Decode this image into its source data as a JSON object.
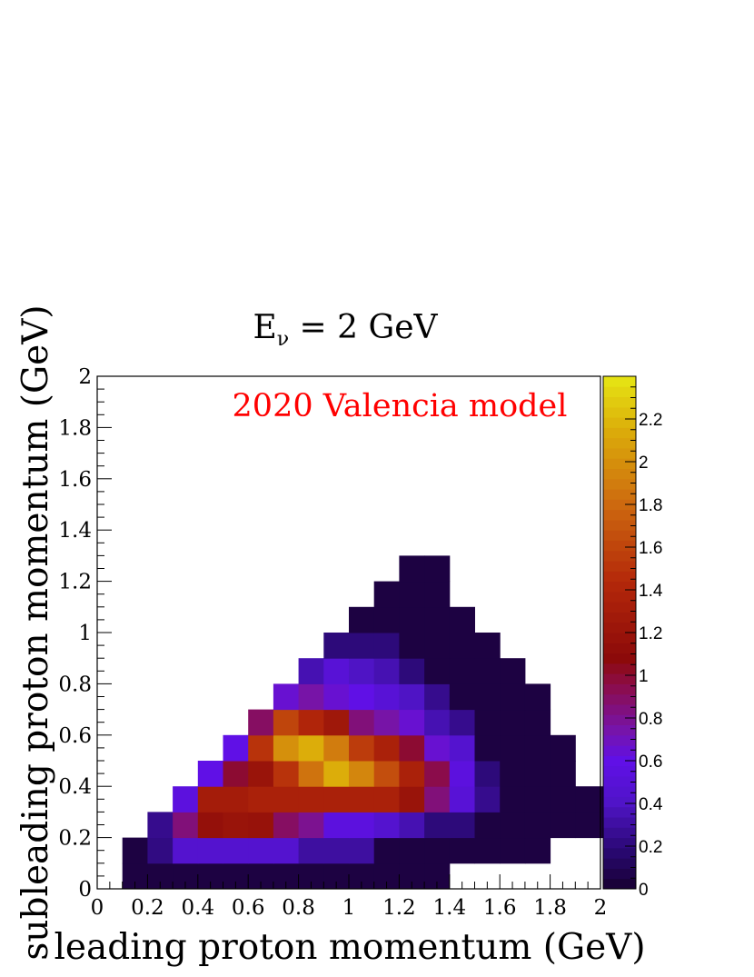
{
  "chart_data": {
    "type": "heatmap",
    "title": "E",
    "title_sub": "ν",
    "title_rest": " = 2 GeV",
    "annotation": "2020 Valencia model",
    "annotation_color": "#ff0000",
    "xlabel": "leading proton momentum (GeV)",
    "ylabel": "subleading proton momentum (GeV)",
    "xlim": [
      0,
      2
    ],
    "ylim": [
      0,
      2
    ],
    "zlim": [
      0,
      2.4
    ],
    "x_ticks": [
      "0",
      "0.2",
      "0.4",
      "0.6",
      "0.8",
      "1",
      "1.2",
      "1.4",
      "1.6",
      "1.8",
      "2"
    ],
    "y_ticks": [
      "0",
      "0.2",
      "0.4",
      "0.6",
      "0.8",
      "1",
      "1.2",
      "1.4",
      "1.6",
      "1.8",
      "2"
    ],
    "z_ticks": [
      "0",
      "0.2",
      "0.4",
      "0.6",
      "0.8",
      "1",
      "1.2",
      "1.4",
      "1.6",
      "1.8",
      "2",
      "2.2"
    ],
    "bin_width": 0.1,
    "grid": false,
    "rows": [
      {
        "y": 0.0,
        "x_start": 0.1,
        "values": [
          0.05,
          0.05,
          0.05,
          0.05,
          0.05,
          0.05,
          0.05,
          0.05,
          0.05,
          0.05,
          0.05,
          0.05,
          0.05
        ]
      },
      {
        "y": 0.1,
        "x_start": 0.1,
        "values": [
          0.05,
          0.22,
          0.45,
          0.45,
          0.45,
          0.45,
          0.45,
          0.3,
          0.3,
          0.3,
          0.05,
          0.05,
          0.05,
          0.05,
          0.05,
          0.05,
          0.05
        ]
      },
      {
        "y": 0.2,
        "x_start": 0.2,
        "values": [
          0.25,
          0.85,
          1.15,
          1.2,
          1.18,
          0.9,
          0.8,
          0.55,
          0.55,
          0.45,
          0.35,
          0.2,
          0.2,
          0.05,
          0.05,
          0.05,
          0.05,
          0.05,
          0.05
        ]
      },
      {
        "y": 0.3,
        "x_start": 0.3,
        "values": [
          0.55,
          1.3,
          1.3,
          1.35,
          1.35,
          1.35,
          1.35,
          1.35,
          1.35,
          1.2,
          0.85,
          0.5,
          0.25,
          0.05,
          0.05,
          0.05,
          0.05,
          0.05
        ]
      },
      {
        "y": 0.4,
        "x_start": 0.4,
        "values": [
          0.6,
          1.0,
          1.2,
          1.5,
          1.85,
          2.15,
          1.95,
          1.65,
          1.35,
          0.95,
          0.55,
          0.2,
          0.05,
          0.05,
          0.05
        ]
      },
      {
        "y": 0.5,
        "x_start": 0.5,
        "values": [
          0.6,
          1.5,
          2.0,
          2.15,
          1.9,
          1.55,
          1.35,
          1.0,
          0.65,
          0.45,
          0.05,
          0.05,
          0.05,
          0.05
        ]
      },
      {
        "y": 0.6,
        "x_start": 0.6,
        "values": [
          0.9,
          1.6,
          1.4,
          1.25,
          0.85,
          0.75,
          0.65,
          0.35,
          0.25,
          0.05,
          0.05,
          0.05
        ]
      },
      {
        "y": 0.7,
        "x_start": 0.7,
        "values": [
          0.65,
          0.75,
          0.65,
          0.6,
          0.5,
          0.4,
          0.25,
          0.05,
          0.05,
          0.05,
          0.05
        ]
      },
      {
        "y": 0.8,
        "x_start": 0.8,
        "values": [
          0.35,
          0.5,
          0.4,
          0.35,
          0.2,
          0.05,
          0.05,
          0.05,
          0.05
        ]
      },
      {
        "y": 0.9,
        "x_start": 0.9,
        "values": [
          0.2,
          0.2,
          0.2,
          0.05,
          0.05,
          0.05,
          0.05
        ]
      },
      {
        "y": 1.0,
        "x_start": 1.0,
        "values": [
          0.05,
          0.05,
          0.05,
          0.05,
          0.05
        ]
      },
      {
        "y": 1.1,
        "x_start": 1.1,
        "values": [
          0.05,
          0.05,
          0.05
        ]
      },
      {
        "y": 1.2,
        "x_start": 1.2,
        "values": [
          0.05,
          0.05
        ]
      }
    ]
  }
}
